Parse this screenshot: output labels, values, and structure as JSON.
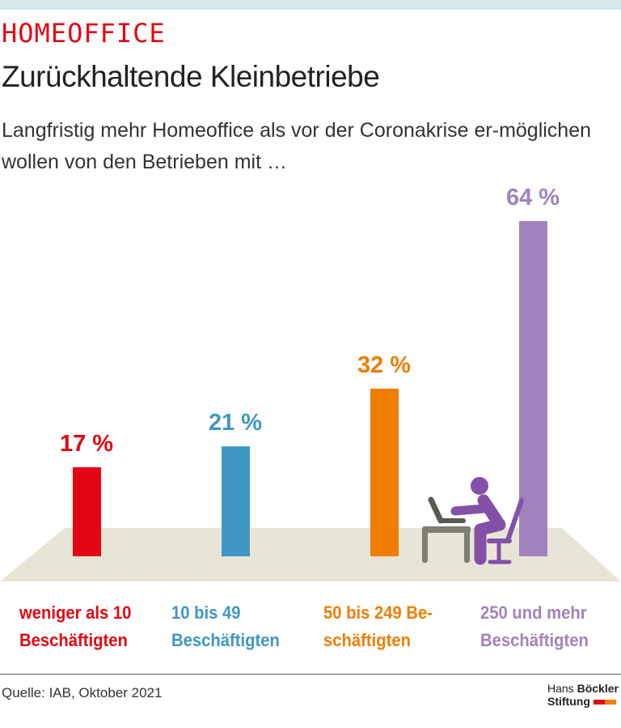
{
  "header": {
    "kicker": "HOMEOFFICE",
    "title": "Zurückhaltende Kleinbetriebe",
    "subtitle": "Langfristig mehr Homeoffice als vor der Coronakrise er-möglichen wollen von den Betrieben mit …"
  },
  "chart_data": {
    "type": "bar",
    "categories": [
      "weniger als 10 Beschäftigten",
      "10 bis 49 Beschäftigten",
      "50 bis 249 Beschäftigten",
      "250 und mehr Beschäftigten"
    ],
    "category_lines": [
      [
        "weniger als 10",
        "Beschäftigten"
      ],
      [
        "10 bis 49",
        "Beschäftigten"
      ],
      [
        "50 bis 249 Be-",
        "schäftigten"
      ],
      [
        "250 und mehr",
        "Beschäftigten"
      ]
    ],
    "values": [
      17,
      21,
      32,
      64
    ],
    "labels": [
      "17 %",
      "21 %",
      "32 %",
      "64 %"
    ],
    "colors": [
      "#e30613",
      "#3f97c4",
      "#f07d00",
      "#a282bd"
    ],
    "ylim": [
      0,
      64
    ],
    "grid": false,
    "unit": "%"
  },
  "footer": {
    "source": "Quelle: IAB, Oktober 2021",
    "logo_line1a": "Hans ",
    "logo_line1b": "Böckler",
    "logo_line2": "Stiftung"
  }
}
